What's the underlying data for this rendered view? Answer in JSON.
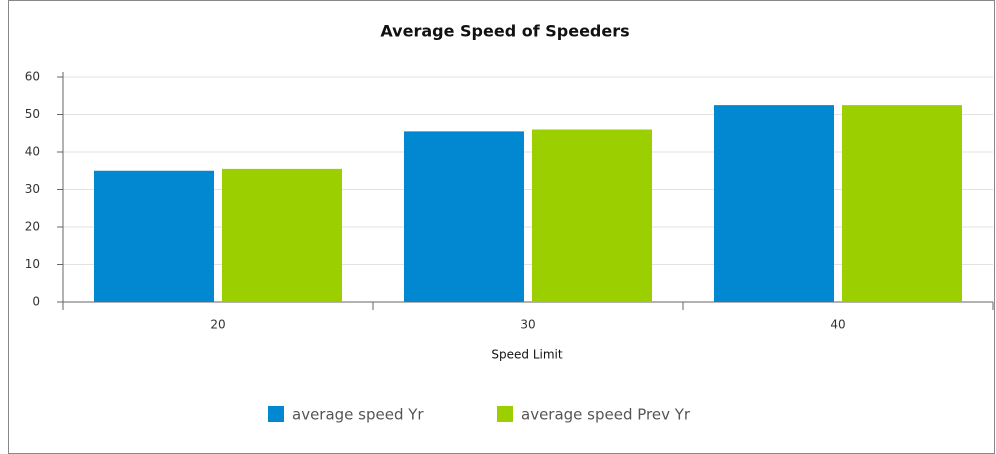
{
  "chart_data": {
    "type": "bar",
    "title": "Average Speed of Speeders",
    "x_label": "Speed Limit",
    "categories": [
      "20",
      "30",
      "40"
    ],
    "series": [
      {
        "name": "average speed Yr",
        "color": "#0288d1",
        "values": [
          35,
          45.5,
          52.5
        ]
      },
      {
        "name": "average speed Prev Yr",
        "color": "#9ccf00",
        "values": [
          35.5,
          46,
          52.5
        ]
      }
    ],
    "ylim": [
      0,
      60
    ],
    "yticks": [
      0,
      10,
      20,
      30,
      40,
      50,
      60
    ],
    "grid": true,
    "legend": "bottom"
  }
}
